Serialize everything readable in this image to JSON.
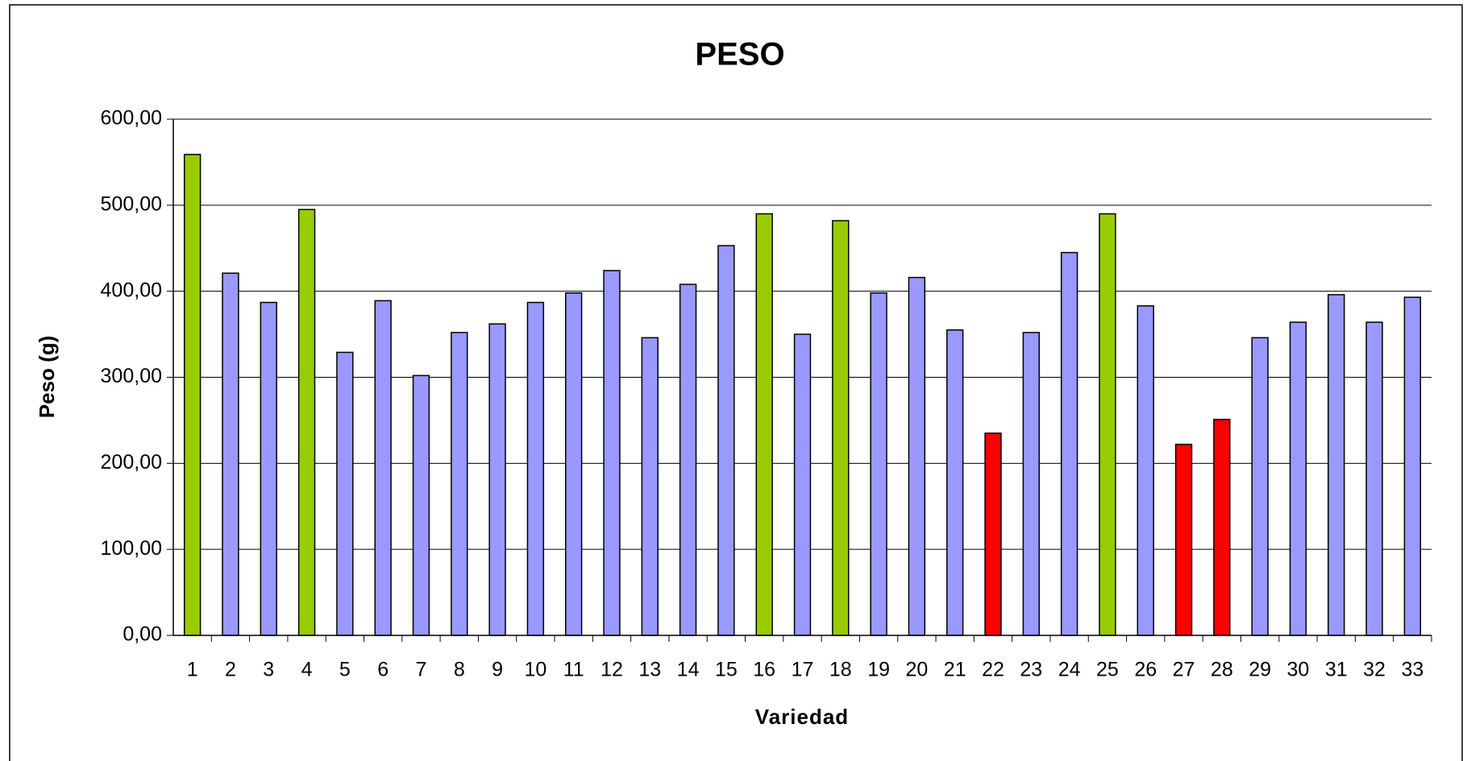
{
  "chart_data": {
    "type": "bar",
    "title": "PESO",
    "xlabel": "Variedad",
    "ylabel": "Peso (g)",
    "categories": [
      "1",
      "2",
      "3",
      "4",
      "5",
      "6",
      "7",
      "8",
      "9",
      "10",
      "11",
      "12",
      "13",
      "14",
      "15",
      "16",
      "17",
      "18",
      "19",
      "20",
      "21",
      "22",
      "23",
      "24",
      "25",
      "26",
      "27",
      "28",
      "29",
      "30",
      "31",
      "32",
      "33"
    ],
    "values": [
      559,
      421,
      387,
      495,
      329,
      389,
      302,
      352,
      362,
      387,
      398,
      424,
      346,
      408,
      453,
      490,
      350,
      482,
      398,
      416,
      355,
      235,
      352,
      445,
      490,
      383,
      222,
      251,
      346,
      364,
      396,
      364,
      393
    ],
    "colors": [
      "#99cc00",
      "#9999ff",
      "#9999ff",
      "#99cc00",
      "#9999ff",
      "#9999ff",
      "#9999ff",
      "#9999ff",
      "#9999ff",
      "#9999ff",
      "#9999ff",
      "#9999ff",
      "#9999ff",
      "#9999ff",
      "#9999ff",
      "#99cc00",
      "#9999ff",
      "#99cc00",
      "#9999ff",
      "#9999ff",
      "#9999ff",
      "#ff0000",
      "#9999ff",
      "#9999ff",
      "#99cc00",
      "#9999ff",
      "#ff0000",
      "#ff0000",
      "#9999ff",
      "#9999ff",
      "#9999ff",
      "#9999ff",
      "#9999ff"
    ],
    "ylim": [
      0,
      600
    ],
    "yticks": [
      {
        "value": 0,
        "label": "0,00"
      },
      {
        "value": 100,
        "label": "100,00"
      },
      {
        "value": 200,
        "label": "200,00"
      },
      {
        "value": 300,
        "label": "300,00"
      },
      {
        "value": 400,
        "label": "400,00"
      },
      {
        "value": 500,
        "label": "500,00"
      },
      {
        "value": 600,
        "label": "600,00"
      }
    ],
    "grid": true
  }
}
